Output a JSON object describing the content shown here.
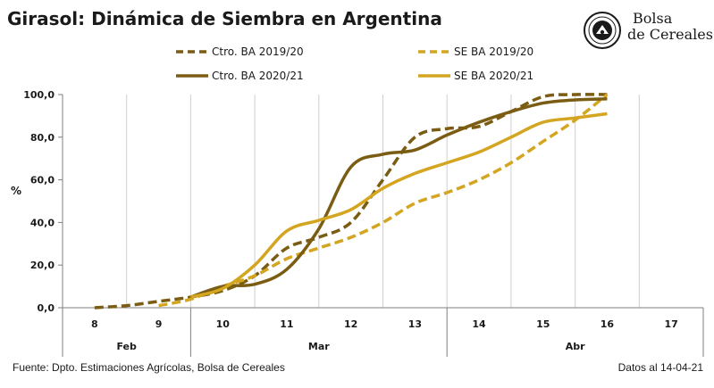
{
  "title": "Girasol: Dinámica de Siembra en Argentina",
  "logo": {
    "line1": "Bolsa",
    "line2": "de Cereales",
    "icon": "bolsa-de-cereales-seal-icon"
  },
  "footer": {
    "source": "Fuente: Dpto. Estimaciones Agrícolas, Bolsa de Cereales",
    "date": "Datos al 14-04-21"
  },
  "chart_data": {
    "type": "line",
    "ylabel": "%",
    "ylim": [
      0,
      100
    ],
    "yticks": [
      "0,0",
      "20,0",
      "40,0",
      "60,0",
      "80,0",
      "100,0"
    ],
    "x": [
      8,
      9,
      10,
      11,
      12,
      13,
      14,
      15,
      16,
      17
    ],
    "x_labels": [
      "8",
      "9",
      "10",
      "11",
      "12",
      "13",
      "14",
      "15",
      "16",
      "17"
    ],
    "months": [
      {
        "label": "Feb",
        "from": 8,
        "to": 9
      },
      {
        "label": "Mar",
        "from": 10,
        "to": 13
      },
      {
        "label": "Abr",
        "from": 14,
        "to": 17
      }
    ],
    "grid": "vertical",
    "legend": "top",
    "series": [
      {
        "name": "Ctro. BA 2019/20",
        "color": "#7a5c12",
        "dashed": true,
        "points": [
          [
            8,
            0
          ],
          [
            8.5,
            1
          ],
          [
            9,
            3
          ],
          [
            9.5,
            5
          ],
          [
            10,
            8
          ],
          [
            10.5,
            15
          ],
          [
            11,
            28
          ],
          [
            11.5,
            33
          ],
          [
            12,
            40
          ],
          [
            12.5,
            60
          ],
          [
            13,
            80
          ],
          [
            13.5,
            84
          ],
          [
            14,
            85
          ],
          [
            14.5,
            92
          ],
          [
            15,
            99
          ],
          [
            15.5,
            100
          ],
          [
            16,
            100
          ]
        ]
      },
      {
        "name": "SE BA 2019/20",
        "color": "#d4a520",
        "dashed": true,
        "points": [
          [
            9,
            1
          ],
          [
            9.5,
            4
          ],
          [
            10,
            10
          ],
          [
            10.5,
            15
          ],
          [
            11,
            23
          ],
          [
            11.5,
            28
          ],
          [
            12,
            33
          ],
          [
            12.5,
            40
          ],
          [
            13,
            49
          ],
          [
            13.5,
            54
          ],
          [
            14,
            60
          ],
          [
            14.5,
            68
          ],
          [
            15,
            78
          ],
          [
            15.5,
            88
          ],
          [
            16,
            100
          ]
        ]
      },
      {
        "name": "Ctro. BA 2020/21",
        "color": "#7a5c12",
        "dashed": false,
        "points": [
          [
            9.5,
            5
          ],
          [
            10,
            10
          ],
          [
            10.5,
            11
          ],
          [
            11,
            18
          ],
          [
            11.5,
            37
          ],
          [
            12,
            66
          ],
          [
            12.5,
            72
          ],
          [
            13,
            74
          ],
          [
            13.5,
            81
          ],
          [
            14,
            87
          ],
          [
            14.5,
            92
          ],
          [
            15,
            96
          ],
          [
            15.5,
            97.5
          ],
          [
            16,
            98
          ]
        ]
      },
      {
        "name": "SE BA 2020/21",
        "color": "#d4a520",
        "dashed": false,
        "points": [
          [
            9.5,
            5
          ],
          [
            10,
            9
          ],
          [
            10.5,
            20
          ],
          [
            11,
            36
          ],
          [
            11.5,
            41
          ],
          [
            12,
            46
          ],
          [
            12.5,
            56
          ],
          [
            13,
            63
          ],
          [
            13.5,
            68
          ],
          [
            14,
            73
          ],
          [
            14.5,
            80
          ],
          [
            15,
            87
          ],
          [
            15.5,
            89
          ],
          [
            16,
            91
          ]
        ]
      }
    ]
  }
}
